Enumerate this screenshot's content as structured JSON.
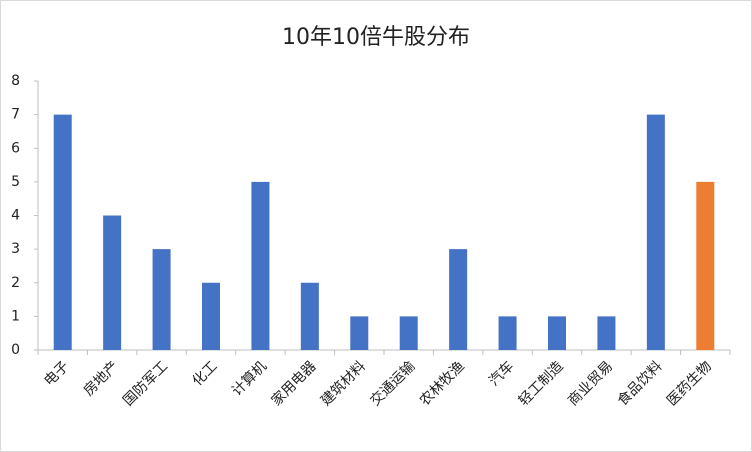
{
  "chart_data": {
    "type": "bar",
    "title": "10年10倍牛股分布",
    "categories": [
      "电子",
      "房地产",
      "国防军工",
      "化工",
      "计算机",
      "家用电器",
      "建筑材料",
      "交通运输",
      "农林牧渔",
      "汽车",
      "轻工制造",
      "商业贸易",
      "食品饮料",
      "医药生物"
    ],
    "values": [
      7,
      4,
      3,
      2,
      5,
      2,
      1,
      1,
      3,
      1,
      1,
      1,
      7,
      5
    ],
    "colors": [
      "#4472c4",
      "#4472c4",
      "#4472c4",
      "#4472c4",
      "#4472c4",
      "#4472c4",
      "#4472c4",
      "#4472c4",
      "#4472c4",
      "#4472c4",
      "#4472c4",
      "#4472c4",
      "#4472c4",
      "#ed7d31"
    ],
    "ylim": [
      0,
      8
    ],
    "yticks": [
      0,
      1,
      2,
      3,
      4,
      5,
      6,
      7,
      8
    ],
    "grid": false
  }
}
